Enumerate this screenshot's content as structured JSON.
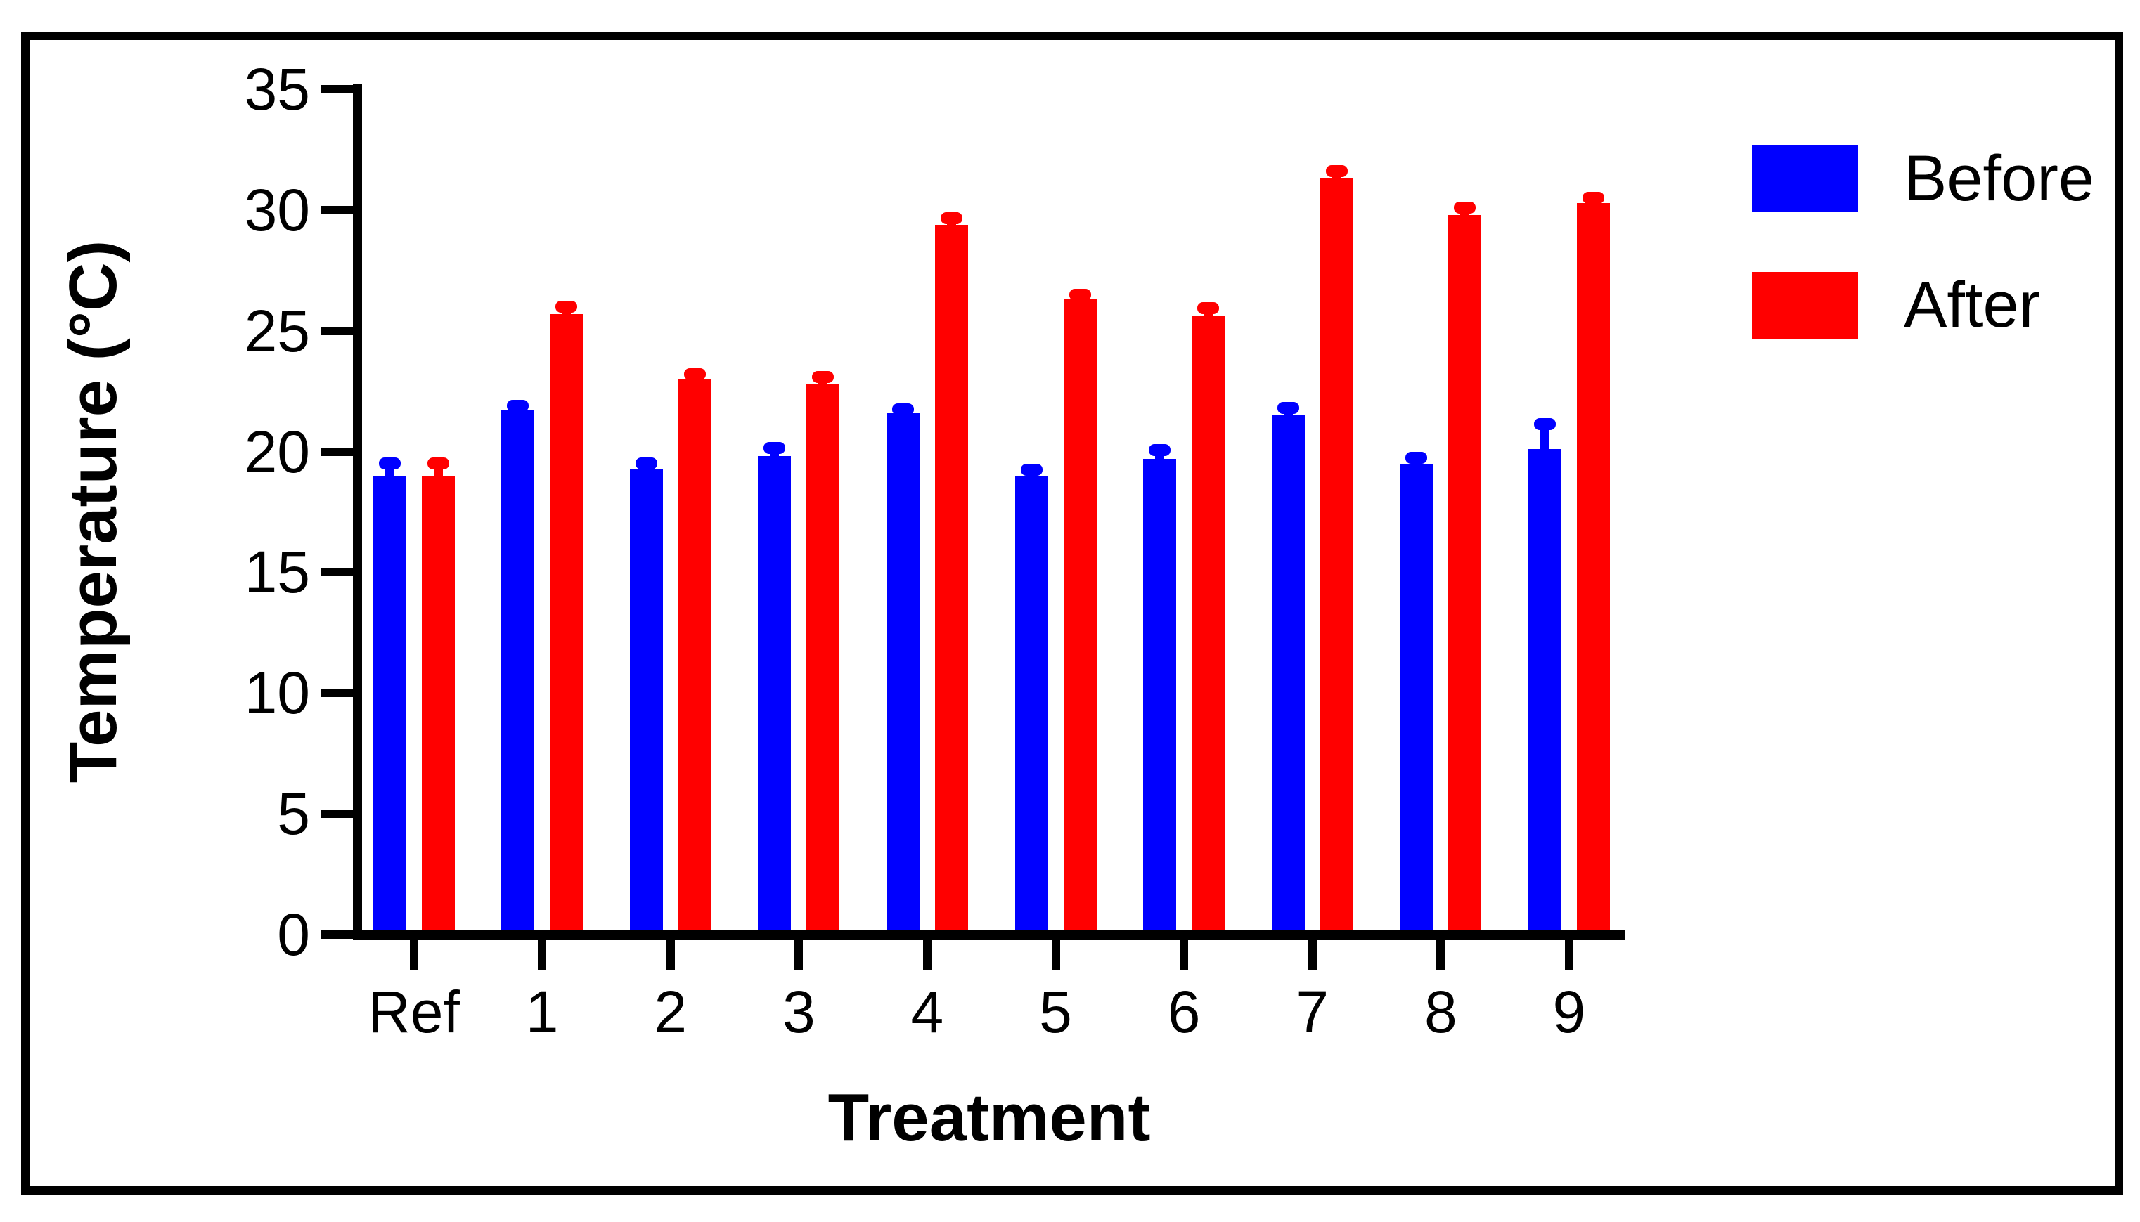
{
  "figure": {
    "background": "#FFFFFF",
    "border_color": "#000000"
  },
  "legend": {
    "position": "top-right",
    "items": [
      {
        "label": "Before",
        "color": "#0000FF"
      },
      {
        "label": "After",
        "color": "#FF0000"
      }
    ]
  },
  "chart_data": {
    "type": "bar",
    "title": "",
    "xlabel": "Treatment",
    "ylabel": "Temperature (°C)",
    "categories": [
      "Ref",
      "1",
      "2",
      "3",
      "4",
      "5",
      "6",
      "7",
      "8",
      "9"
    ],
    "series": [
      {
        "name": "Before",
        "color": "#0000FF",
        "values": [
          19.0,
          21.7,
          19.3,
          19.8,
          21.6,
          19.0,
          19.7,
          21.5,
          19.5,
          20.1
        ],
        "sem": [
          0.5,
          0.2,
          0.2,
          0.35,
          0.15,
          0.25,
          0.35,
          0.3,
          0.25,
          1.05
        ]
      },
      {
        "name": "After",
        "color": "#FF0000",
        "values": [
          19.0,
          25.7,
          23.0,
          22.8,
          29.4,
          26.3,
          25.6,
          31.3,
          29.8,
          30.3
        ],
        "sem": [
          0.5,
          0.3,
          0.2,
          0.3,
          0.25,
          0.2,
          0.35,
          0.3,
          0.3,
          0.2
        ]
      }
    ],
    "ylim": [
      0,
      35
    ],
    "yticks": [
      0,
      5,
      10,
      15,
      20,
      25,
      30,
      35
    ],
    "error_bars": "SEM, upper whisker only, drawn in series color",
    "grid": false,
    "legend_position": "top-right"
  }
}
